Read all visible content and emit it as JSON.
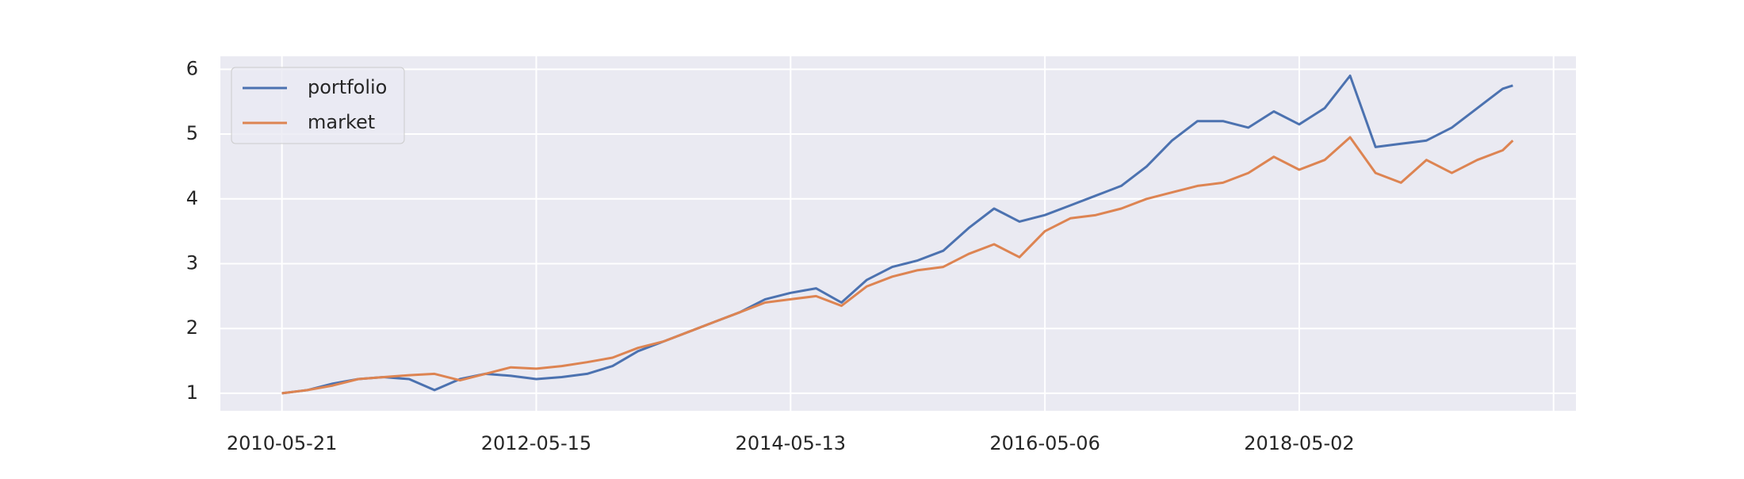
{
  "chart_data": {
    "type": "line",
    "x": [
      0,
      50,
      100,
      150,
      200,
      250,
      300,
      350,
      400,
      450,
      500,
      550,
      600,
      650,
      700,
      750,
      800,
      850,
      900,
      950,
      1000,
      1050,
      1100,
      1150,
      1200,
      1250,
      1300,
      1350,
      1400,
      1450,
      1500,
      1550,
      1600,
      1650,
      1700,
      1750,
      1800,
      1850,
      1900,
      1950,
      2000,
      2050,
      2100,
      2150,
      2200,
      2250,
      2300,
      2350,
      2400,
      2420
    ],
    "series": [
      {
        "name": "portfolio",
        "color": "#4c72b0",
        "values": [
          1.0,
          1.05,
          1.15,
          1.22,
          1.25,
          1.22,
          1.05,
          1.22,
          1.3,
          1.27,
          1.22,
          1.25,
          1.3,
          1.42,
          1.65,
          1.8,
          1.95,
          2.1,
          2.25,
          2.45,
          2.55,
          2.62,
          2.4,
          2.75,
          2.95,
          3.05,
          3.2,
          3.55,
          3.85,
          3.65,
          3.75,
          3.9,
          4.05,
          4.2,
          4.5,
          4.9,
          5.2,
          5.2,
          5.1,
          5.35,
          5.15,
          5.4,
          5.9,
          4.8,
          4.85,
          4.9,
          5.1,
          5.4,
          5.7,
          5.75
        ]
      },
      {
        "name": "market",
        "color": "#dd8452",
        "values": [
          1.0,
          1.05,
          1.12,
          1.22,
          1.25,
          1.28,
          1.3,
          1.2,
          1.3,
          1.4,
          1.38,
          1.42,
          1.48,
          1.55,
          1.7,
          1.8,
          1.95,
          2.1,
          2.25,
          2.4,
          2.45,
          2.5,
          2.35,
          2.65,
          2.8,
          2.9,
          2.95,
          3.15,
          3.3,
          3.1,
          3.5,
          3.7,
          3.75,
          3.85,
          4.0,
          4.1,
          4.2,
          4.25,
          4.4,
          4.65,
          4.45,
          4.6,
          4.95,
          4.4,
          4.25,
          4.6,
          4.4,
          4.6,
          4.75,
          4.9
        ]
      }
    ],
    "xlim": [
      -121,
      2544
    ],
    "xticks": [
      {
        "value": 0,
        "label": "2010-05-21"
      },
      {
        "value": 500,
        "label": "2012-05-15"
      },
      {
        "value": 1000,
        "label": "2014-05-13"
      },
      {
        "value": 1500,
        "label": "2016-05-06"
      },
      {
        "value": 2000,
        "label": "2018-05-02"
      },
      {
        "value": 2500,
        "label": null
      }
    ],
    "ylim": [
      0.73,
      6.2
    ],
    "yticks": [
      1,
      2,
      3,
      4,
      5,
      6
    ],
    "grid": true,
    "legend": "upper-left"
  }
}
